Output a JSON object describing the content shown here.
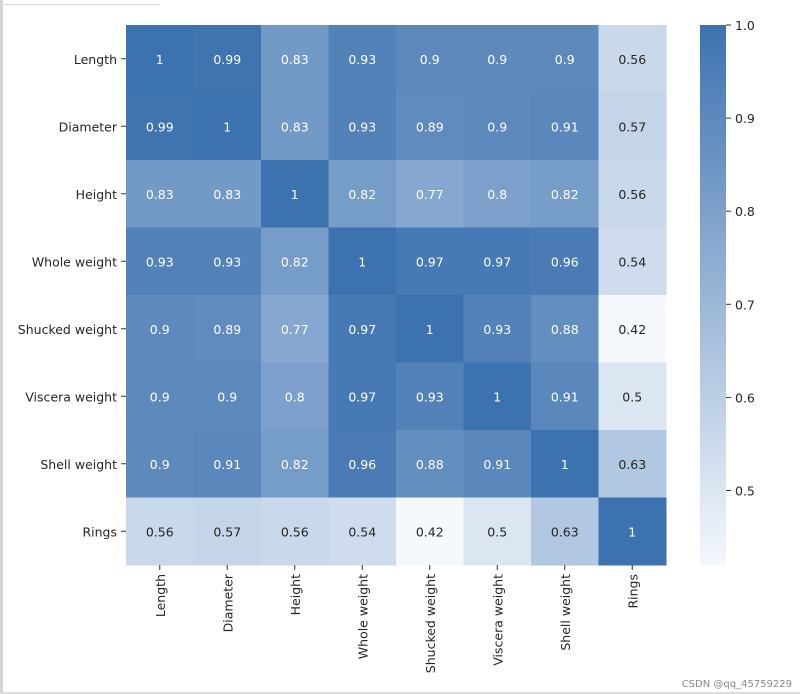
{
  "chart_data": {
    "type": "heatmap",
    "title": "",
    "xlabel": "",
    "ylabel": "",
    "labels": [
      "Length",
      "Diameter",
      "Height",
      "Whole weight",
      "Shucked weight",
      "Viscera weight",
      "Shell weight",
      "Rings"
    ],
    "matrix": [
      [
        1,
        0.99,
        0.83,
        0.93,
        0.9,
        0.9,
        0.9,
        0.56
      ],
      [
        0.99,
        1,
        0.83,
        0.93,
        0.89,
        0.9,
        0.91,
        0.57
      ],
      [
        0.83,
        0.83,
        1,
        0.82,
        0.77,
        0.8,
        0.82,
        0.56
      ],
      [
        0.93,
        0.93,
        0.82,
        1,
        0.97,
        0.97,
        0.96,
        0.54
      ],
      [
        0.9,
        0.89,
        0.77,
        0.97,
        1,
        0.93,
        0.88,
        0.42
      ],
      [
        0.9,
        0.9,
        0.8,
        0.97,
        0.93,
        1,
        0.91,
        0.5
      ],
      [
        0.9,
        0.91,
        0.82,
        0.96,
        0.88,
        0.91,
        1,
        0.63
      ],
      [
        0.56,
        0.57,
        0.56,
        0.54,
        0.42,
        0.5,
        0.63,
        1
      ]
    ],
    "annotations": true,
    "colorbar": {
      "min": 0.42,
      "max": 1.0,
      "ticks": [
        "1.0",
        "0.9",
        "0.8",
        "0.7",
        "0.6",
        "0.5"
      ]
    },
    "colors": {
      "low": "#f5f8fd",
      "high": "#3d72b0"
    }
  },
  "watermark": "CSDN @qq_45759229"
}
